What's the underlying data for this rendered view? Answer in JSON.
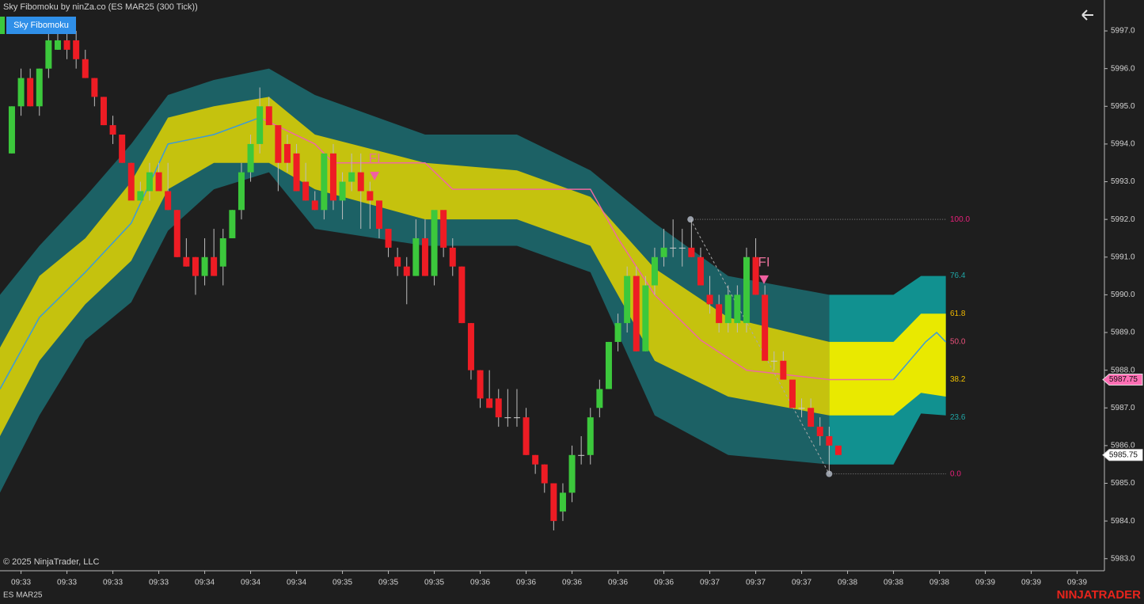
{
  "chart_data": {
    "type": "candlestick",
    "title": "Sky Fibomoku by ninZa.co (ES MAR25 (300 Tick))",
    "indicator_button": "Sky Fibomoku",
    "copyright": "© 2025 NinjaTrader, LLC",
    "instrument": "ES MAR25",
    "logo": "NINJATRADER",
    "up_color": "#3cc83c",
    "down_color": "#ee1c24",
    "xlim": [
      -1.29,
      118.97
    ],
    "ylim": [
      5982.68,
      5997.82
    ],
    "xticks": [
      {
        "value": 1,
        "label": "09:33"
      },
      {
        "value": 6,
        "label": "09:33"
      },
      {
        "value": 11,
        "label": "09:33"
      },
      {
        "value": 16,
        "label": "09:33"
      },
      {
        "value": 21,
        "label": "09:34"
      },
      {
        "value": 26,
        "label": "09:34"
      },
      {
        "value": 31,
        "label": "09:34"
      },
      {
        "value": 36,
        "label": "09:35"
      },
      {
        "value": 41,
        "label": "09:35"
      },
      {
        "value": 46,
        "label": "09:35"
      },
      {
        "value": 51,
        "label": "09:36"
      },
      {
        "value": 56,
        "label": "09:36"
      },
      {
        "value": 61,
        "label": "09:36"
      },
      {
        "value": 66,
        "label": "09:36"
      },
      {
        "value": 71,
        "label": "09:36"
      },
      {
        "value": 76,
        "label": "09:37"
      },
      {
        "value": 81,
        "label": "09:37"
      },
      {
        "value": 86,
        "label": "09:37"
      },
      {
        "value": 91,
        "label": "09:38"
      },
      {
        "value": 96,
        "label": "09:38"
      },
      {
        "value": 101,
        "label": "09:38"
      },
      {
        "value": 106,
        "label": "09:39"
      },
      {
        "value": 111,
        "label": "09:39"
      },
      {
        "value": 116,
        "label": "09:39"
      }
    ],
    "yticks": [
      {
        "value": 5983,
        "label": "5983.0"
      },
      {
        "value": 5984,
        "label": "5984.0"
      },
      {
        "value": 5985,
        "label": "5985.0"
      },
      {
        "value": 5986,
        "label": "5986.0"
      },
      {
        "value": 5987,
        "label": "5987.0"
      },
      {
        "value": 5988,
        "label": "5988.0"
      },
      {
        "value": 5989,
        "label": "5989.0"
      },
      {
        "value": 5990,
        "label": "5990.0"
      },
      {
        "value": 5991,
        "label": "5991.0"
      },
      {
        "value": 5992,
        "label": "5992.0"
      },
      {
        "value": 5993,
        "label": "5993.0"
      },
      {
        "value": 5994,
        "label": "5994.0"
      },
      {
        "value": 5995,
        "label": "5995.0"
      },
      {
        "value": 5996,
        "label": "5996.0"
      },
      {
        "value": 5997,
        "label": "5997.0"
      }
    ],
    "open": [
      5993.75,
      5995.0,
      5995.75,
      5995.0,
      5996.0,
      5996.5,
      5996.75,
      5996.75,
      5996.25,
      5995.75,
      5995.25,
      5994.5,
      5994.25,
      5993.5,
      5992.5,
      5992.75,
      5993.25,
      5992.75,
      5992.25,
      5991.0,
      5991.0,
      5990.5,
      5991.0,
      5990.75,
      5991.5,
      5992.25,
      5993.25,
      5994.0,
      5995.0,
      5994.5,
      5994.0,
      5993.75,
      5993.0,
      5992.5,
      5992.25,
      5993.75,
      5992.5,
      5993.0,
      5993.25,
      5992.75,
      5992.5,
      5991.75,
      5991.0,
      5990.75,
      5990.5,
      5991.5,
      5990.5,
      5992.25,
      5991.25,
      5990.75,
      5989.25,
      5988.0,
      5987.25,
      5987.25,
      5986.75,
      5986.75,
      5986.75,
      5985.75,
      5985.5,
      5985.0,
      5984.25,
      5984.75,
      5985.75,
      5985.75,
      5987.0,
      5987.5,
      5988.75,
      5989.25,
      5990.5,
      5988.5,
      5990.25,
      5991.0,
      5991.25,
      5991.25,
      5991.25,
      5991.0,
      5990.0,
      5989.75,
      5989.25,
      5989.25,
      5989.25,
      5991.0,
      5990.0,
      5988.25,
      5988.25,
      5987.75,
      5987.0,
      5987.0,
      5986.5,
      5986.25,
      5986.0
    ],
    "high": [
      5995.0,
      5996.0,
      5996.0,
      5996.0,
      5997.0,
      5997.0,
      5997.0,
      5997.0,
      5996.5,
      5995.75,
      5995.25,
      5994.75,
      5994.25,
      5993.5,
      5993.0,
      5993.5,
      5993.5,
      5993.5,
      5992.25,
      5991.5,
      5991.0,
      5991.5,
      5991.75,
      5991.75,
      5992.25,
      5993.5,
      5994.25,
      5995.5,
      5995.25,
      5994.5,
      5994.25,
      5994.0,
      5993.5,
      5992.75,
      5993.75,
      5994.0,
      5993.25,
      5993.75,
      5993.75,
      5993.0,
      5992.5,
      5991.75,
      5991.25,
      5991.0,
      5992.0,
      5992.0,
      5992.25,
      5992.25,
      5991.5,
      5990.75,
      5989.25,
      5988.0,
      5988.0,
      5987.5,
      5987.5,
      5987.5,
      5987.0,
      5985.75,
      5985.5,
      5985.0,
      5985.0,
      5986.0,
      5986.25,
      5987.0,
      5987.75,
      5988.75,
      5989.5,
      5990.75,
      5990.75,
      5990.5,
      5991.25,
      5991.75,
      5992.0,
      5991.75,
      5992.0,
      5991.25,
      5990.5,
      5990.0,
      5990.25,
      5990.25,
      5991.25,
      5991.5,
      5990.25,
      5988.5,
      5988.5,
      5987.75,
      5987.25,
      5987.25,
      5986.75,
      5986.5,
      5986.0
    ],
    "low": [
      5993.75,
      5994.75,
      5995.0,
      5994.75,
      5995.75,
      5996.5,
      5996.25,
      5996.0,
      5995.75,
      5995.0,
      5994.5,
      5994.0,
      5993.5,
      5992.5,
      5992.5,
      5992.5,
      5992.75,
      5992.25,
      5991.0,
      5990.75,
      5990.0,
      5990.25,
      5990.5,
      5990.25,
      5991.5,
      5992.0,
      5993.0,
      5993.75,
      5994.5,
      5992.75,
      5993.25,
      5992.75,
      5992.5,
      5992.25,
      5992.0,
      5992.25,
      5992.0,
      5992.75,
      5991.75,
      5991.75,
      5991.5,
      5991.0,
      5990.5,
      5989.75,
      5990.5,
      5990.5,
      5990.25,
      5991.0,
      5990.5,
      5989.25,
      5987.75,
      5987.0,
      5987.0,
      5986.5,
      5986.5,
      5986.5,
      5985.75,
      5985.25,
      5984.75,
      5983.75,
      5984.0,
      5984.5,
      5985.5,
      5985.5,
      5986.75,
      5987.5,
      5988.5,
      5989.0,
      5988.5,
      5988.5,
      5990.0,
      5990.75,
      5991.0,
      5990.75,
      5991.0,
      5990.25,
      5989.5,
      5989.0,
      5989.0,
      5989.0,
      5989.0,
      5990.0,
      5988.25,
      5988.0,
      5987.75,
      5987.0,
      5986.75,
      5986.5,
      5986.0,
      5985.25,
      5985.75
    ],
    "close": [
      5995.0,
      5995.75,
      5995.0,
      5996.0,
      5996.75,
      5996.75,
      5996.5,
      5996.25,
      5995.75,
      5995.25,
      5994.5,
      5994.25,
      5993.5,
      5992.5,
      5992.75,
      5993.25,
      5992.75,
      5992.25,
      5991.0,
      5990.75,
      5990.5,
      5991.0,
      5990.5,
      5991.5,
      5992.25,
      5993.25,
      5994.0,
      5995.0,
      5994.5,
      5993.5,
      5993.5,
      5992.75,
      5992.5,
      5992.25,
      5993.75,
      5992.5,
      5993.0,
      5993.25,
      5992.75,
      5992.5,
      5991.75,
      5991.25,
      5990.75,
      5990.5,
      5991.5,
      5990.5,
      5992.25,
      5991.25,
      5990.75,
      5989.25,
      5988.0,
      5987.25,
      5987.0,
      5986.75,
      5986.75,
      5986.75,
      5985.75,
      5985.5,
      5985.0,
      5984.0,
      5984.75,
      5985.75,
      5985.75,
      5986.75,
      5987.5,
      5988.75,
      5989.25,
      5990.5,
      5988.5,
      5990.25,
      5991.0,
      5991.25,
      5991.25,
      5991.25,
      5991.0,
      5990.25,
      5989.75,
      5989.25,
      5990.0,
      5990.0,
      5991.0,
      5990.0,
      5988.25,
      5988.25,
      5987.75,
      5987.0,
      5987.0,
      5986.5,
      5986.25,
      5986.0,
      5985.75
    ],
    "bands": [
      {
        "outer_color": "#1c6165",
        "inner_color": "#c5c20e",
        "x": [
          -1.29,
          3,
          8,
          13,
          17,
          22,
          28,
          33,
          45,
          55,
          63,
          70,
          78,
          89
        ],
        "outer_upper": [
          5990.0,
          5991.3,
          5992.6,
          5994.0,
          5995.3,
          5995.7,
          5996.0,
          5995.3,
          5994.25,
          5994.25,
          5993.3,
          5991.9,
          5990.5,
          5990.0
        ],
        "inner_upper": [
          5988.6,
          5990.5,
          5991.5,
          5993.0,
          5994.7,
          5995.0,
          5995.25,
          5994.25,
          5993.5,
          5993.3,
          5992.6,
          5990.7,
          5989.4,
          5988.75
        ],
        "inner_lower": [
          5986.25,
          5988.25,
          5989.75,
          5990.9,
          5992.8,
          5993.5,
          5993.5,
          5992.8,
          5992.0,
          5992.0,
          5991.3,
          5988.25,
          5987.3,
          5986.8
        ],
        "outer_lower": [
          5984.75,
          5986.8,
          5988.8,
          5989.8,
          5991.7,
          5992.8,
          5993.25,
          5991.75,
          5991.3,
          5991.3,
          5990.6,
          5986.8,
          5985.75,
          5985.5
        ]
      },
      {
        "outer_color": "#119190",
        "inner_color": "#e9e900",
        "x": [
          89,
          96,
          99,
          101.7
        ],
        "outer_upper": [
          5990.0,
          5990.0,
          5990.5,
          5990.5
        ],
        "inner_upper": [
          5988.75,
          5988.75,
          5989.5,
          5989.5
        ],
        "inner_lower": [
          5986.8,
          5986.8,
          5987.4,
          5987.3
        ],
        "outer_lower": [
          5985.5,
          5985.5,
          5986.85,
          5986.8
        ]
      }
    ],
    "lines": [
      {
        "color": "#3c9ad8",
        "x": [
          -1.29,
          3,
          8,
          13,
          17,
          22,
          27
        ],
        "values": [
          5987.5,
          5989.4,
          5990.6,
          5991.9,
          5994.0,
          5994.25,
          5994.7
        ]
      },
      {
        "color": "#ee6aa0",
        "x": [
          27,
          33,
          35,
          45,
          48,
          63,
          66,
          70,
          75,
          80,
          89,
          96
        ],
        "values": [
          5994.7,
          5994.0,
          5993.5,
          5993.5,
          5992.8,
          5992.8,
          5991.5,
          5990.0,
          5988.8,
          5988.0,
          5987.75,
          5987.75
        ]
      },
      {
        "color": "#3c9ad8",
        "x": [
          96,
          99.5,
          100.7,
          101.7
        ],
        "values": [
          5987.75,
          5988.75,
          5989.0,
          5988.75
        ]
      }
    ],
    "fib_levels": [
      {
        "label": "100.0",
        "value": 5992.0,
        "color": "#e8207a"
      },
      {
        "label": "76.4",
        "value": 5990.5,
        "color": "#20a5a5"
      },
      {
        "label": "61.8",
        "value": 5989.5,
        "color": "#f0b800"
      },
      {
        "label": "50.0",
        "value": 5988.75,
        "color": "#e8507a"
      },
      {
        "label": "38.2",
        "value": 5987.75,
        "color": "#f0c000"
      },
      {
        "label": "23.6",
        "value": 5986.75,
        "color": "#20a5a5"
      },
      {
        "label": "0.0",
        "value": 5985.25,
        "color": "#e8207a"
      }
    ],
    "swing": {
      "x": [
        73.9,
        89
      ],
      "values": [
        5992.0,
        5985.25
      ]
    },
    "signals": [
      {
        "label": "FI",
        "x": 39.5,
        "value": 5993.6,
        "color": "#e8709a"
      },
      {
        "label": "FI",
        "x": 81.9,
        "value": 5990.85,
        "color": "#e8709a"
      }
    ],
    "price_markers": [
      {
        "label": "5987.75",
        "value": 5987.75,
        "color": "#ff6eb4"
      },
      {
        "label": "5985.75",
        "value": 5985.75,
        "color": "#ffffff"
      }
    ]
  }
}
